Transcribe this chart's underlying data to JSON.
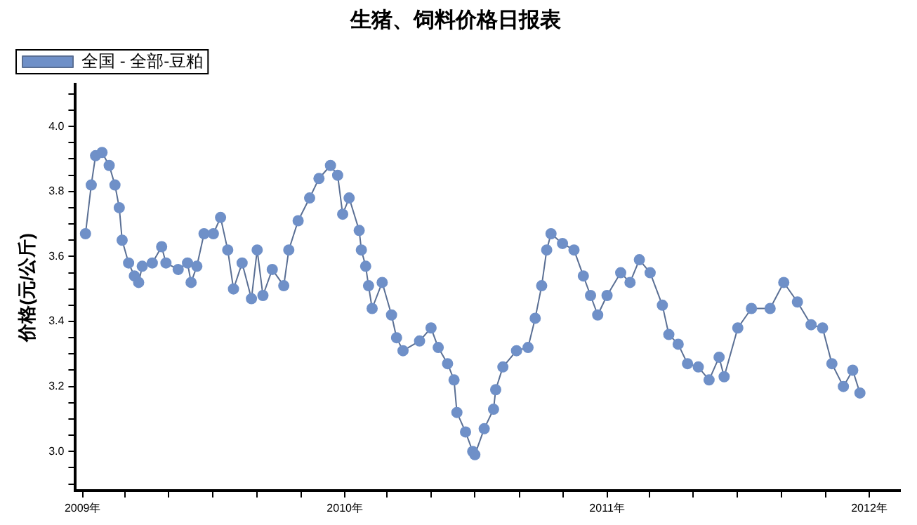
{
  "chart_data": {
    "type": "line",
    "title": "生猪、饲料价格日报表",
    "ylabel": "价格(元/公斤)",
    "x": [
      "2009-01-05",
      "2009-01-13",
      "2009-01-19",
      "2009-01-28",
      "2009-02-07",
      "2009-02-15",
      "2009-02-21",
      "2009-02-25",
      "2009-03-06",
      "2009-03-14",
      "2009-03-20",
      "2009-03-25",
      "2009-04-08",
      "2009-04-21",
      "2009-04-27",
      "2009-05-14",
      "2009-05-27",
      "2009-06-01",
      "2009-06-09",
      "2009-06-19",
      "2009-07-02",
      "2009-07-12",
      "2009-07-22",
      "2009-07-30",
      "2009-08-11",
      "2009-08-24",
      "2009-09-01",
      "2009-09-09",
      "2009-09-22",
      "2009-10-08",
      "2009-10-15",
      "2009-10-28",
      "2009-11-13",
      "2009-11-26",
      "2009-12-12",
      "2009-12-22",
      "2009-12-29",
      "2010-01-07",
      "2010-01-21",
      "2010-01-24",
      "2010-01-30",
      "2010-02-03",
      "2010-02-08",
      "2010-02-22",
      "2010-03-07",
      "2010-03-14",
      "2010-03-23",
      "2010-04-15",
      "2010-05-01",
      "2010-05-11",
      "2010-05-24",
      "2010-06-02",
      "2010-06-06",
      "2010-06-18",
      "2010-06-28",
      "2010-07-01",
      "2010-07-14",
      "2010-07-27",
      "2010-07-30",
      "2010-08-09",
      "2010-08-28",
      "2010-09-13",
      "2010-09-23",
      "2010-10-02",
      "2010-10-09",
      "2010-10-15",
      "2010-10-31",
      "2010-11-16",
      "2010-11-29",
      "2010-12-09",
      "2010-12-19",
      "2011-01-01",
      "2011-01-20",
      "2011-02-02",
      "2011-02-15",
      "2011-03-02",
      "2011-03-19",
      "2011-03-28",
      "2011-04-10",
      "2011-04-23",
      "2011-05-08",
      "2011-05-23",
      "2011-06-06",
      "2011-06-13",
      "2011-07-02",
      "2011-07-21",
      "2011-08-16",
      "2011-09-04",
      "2011-09-23",
      "2011-10-12",
      "2011-10-28",
      "2011-11-10",
      "2011-11-26",
      "2011-12-09",
      "2011-12-19"
    ],
    "series": [
      {
        "name": "全国 - 全部-豆粕",
        "color": "#6f90c8",
        "values": [
          3.67,
          3.82,
          3.91,
          3.92,
          3.88,
          3.82,
          3.75,
          3.65,
          3.58,
          3.54,
          3.52,
          3.57,
          3.58,
          3.63,
          3.58,
          3.56,
          3.58,
          3.52,
          3.57,
          3.67,
          3.67,
          3.72,
          3.62,
          3.5,
          3.58,
          3.47,
          3.62,
          3.48,
          3.56,
          3.51,
          3.62,
          3.71,
          3.78,
          3.84,
          3.88,
          3.85,
          3.73,
          3.78,
          3.68,
          3.62,
          3.57,
          3.51,
          3.44,
          3.52,
          3.42,
          3.35,
          3.31,
          3.34,
          3.38,
          3.32,
          3.27,
          3.22,
          3.12,
          3.06,
          3.0,
          2.99,
          3.07,
          3.13,
          3.19,
          3.26,
          3.31,
          3.32,
          3.41,
          3.51,
          3.62,
          3.67,
          3.64,
          3.62,
          3.54,
          3.48,
          3.42,
          3.48,
          3.55,
          3.52,
          3.59,
          3.55,
          3.45,
          3.36,
          3.33,
          3.27,
          3.26,
          3.22,
          3.29,
          3.23,
          3.38,
          3.44,
          3.44,
          3.52,
          3.46,
          3.39,
          3.38,
          3.27,
          3.2,
          3.25,
          3.18
        ]
      }
    ],
    "xlim": [
      "2008-12-22",
      "2012-02-13"
    ],
    "xticks": [
      {
        "value": "2009",
        "label": "2009年"
      },
      {
        "value": "2009-03",
        "label": null
      },
      {
        "value": "2009-05",
        "label": null
      },
      {
        "value": "2009-07",
        "label": null
      },
      {
        "value": "2009-09",
        "label": null
      },
      {
        "value": "2009-11",
        "label": null
      },
      {
        "value": "2010",
        "label": "2010年"
      },
      {
        "value": "2010-03",
        "label": null
      },
      {
        "value": "2010-05",
        "label": null
      },
      {
        "value": "2010-07",
        "label": null
      },
      {
        "value": "2010-09",
        "label": null
      },
      {
        "value": "2010-11",
        "label": null
      },
      {
        "value": "2011",
        "label": "2011年"
      },
      {
        "value": "2011-03",
        "label": null
      },
      {
        "value": "2011-05",
        "label": null
      },
      {
        "value": "2011-07",
        "label": null
      },
      {
        "value": "2011-09",
        "label": null
      },
      {
        "value": "2011-11",
        "label": null
      },
      {
        "value": "2012",
        "label": "2012年"
      }
    ],
    "ylim": [
      2.88,
      4.13
    ],
    "yticks": [
      {
        "value": 2.9,
        "label": null
      },
      {
        "value": 2.95,
        "label": null
      },
      {
        "value": 3,
        "label": "3.0"
      },
      {
        "value": 3.05,
        "label": null
      },
      {
        "value": 3.1,
        "label": null
      },
      {
        "value": 3.15,
        "label": null
      },
      {
        "value": 3.2,
        "label": "3.2"
      },
      {
        "value": 3.25,
        "label": null
      },
      {
        "value": 3.3,
        "label": null
      },
      {
        "value": 3.35,
        "label": null
      },
      {
        "value": 3.4,
        "label": "3.4"
      },
      {
        "value": 3.45,
        "label": null
      },
      {
        "value": 3.5,
        "label": null
      },
      {
        "value": 3.55,
        "label": null
      },
      {
        "value": 3.6,
        "label": "3.6"
      },
      {
        "value": 3.65,
        "label": null
      },
      {
        "value": 3.7,
        "label": null
      },
      {
        "value": 3.75,
        "label": null
      },
      {
        "value": 3.8,
        "label": "3.8"
      },
      {
        "value": 3.85,
        "label": null
      },
      {
        "value": 3.9,
        "label": null
      },
      {
        "value": 3.95,
        "label": null
      },
      {
        "value": 4,
        "label": "4.0"
      },
      {
        "value": 4.05,
        "label": null
      },
      {
        "value": 4.1,
        "label": null
      }
    ],
    "grid": false,
    "legend": "top left",
    "marker": "circle",
    "line_style": "solid"
  }
}
